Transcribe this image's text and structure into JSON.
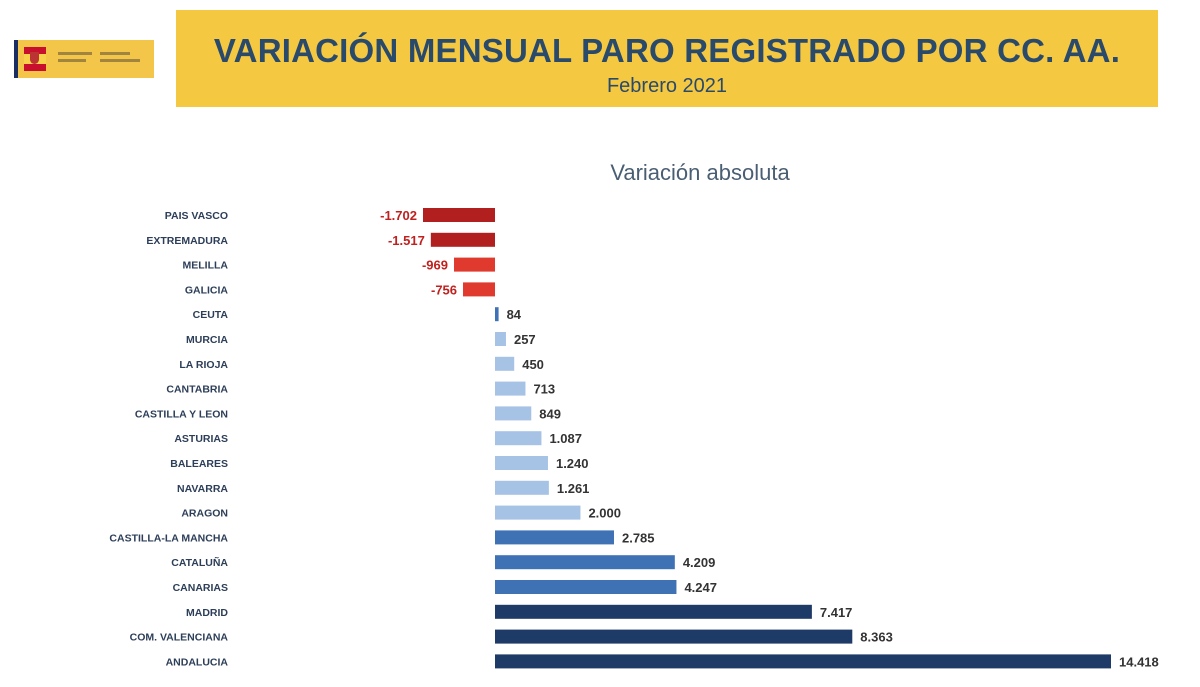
{
  "header": {
    "title": "VARIACIÓN MENSUAL PARO REGISTRADO POR CC. AA.",
    "subtitle": "Febrero 2021"
  },
  "colors": {
    "banner": "#f5c842",
    "negative_dark": "#b21f1f",
    "negative_light": "#e03a2f",
    "positive_light": "#a6c3e6",
    "positive_mid": "#3f72b5",
    "positive_dark": "#1e3a66"
  },
  "chart_data": {
    "type": "bar",
    "orientation": "horizontal",
    "title": "Variación absoluta",
    "categories": [
      "PAIS VASCO",
      "EXTREMADURA",
      "MELILLA",
      "GALICIA",
      "CEUTA",
      "MURCIA",
      "LA RIOJA",
      "CANTABRIA",
      "CASTILLA Y LEON",
      "ASTURIAS",
      "BALEARES",
      "NAVARRA",
      "ARAGON",
      "CASTILLA-LA MANCHA",
      "CATALUÑA",
      "CANARIAS",
      "MADRID",
      "COM. VALENCIANA",
      "ANDALUCIA"
    ],
    "values": [
      -1702,
      -1517,
      -969,
      -756,
      84,
      257,
      450,
      713,
      849,
      1087,
      1240,
      1261,
      2000,
      2785,
      4209,
      4247,
      7417,
      8363,
      14418
    ],
    "value_labels": [
      "-1.702",
      "-1.517",
      "-969",
      "-756",
      "84",
      "257",
      "450",
      "713",
      "849",
      "1.087",
      "1.240",
      "1.261",
      "2.000",
      "2.785",
      "4.209",
      "4.247",
      "7.417",
      "8.363",
      "14.418"
    ],
    "bar_colors": [
      "#b21f1f",
      "#b21f1f",
      "#e03a2f",
      "#e03a2f",
      "#3f72b5",
      "#a6c3e6",
      "#a6c3e6",
      "#a6c3e6",
      "#a6c3e6",
      "#a6c3e6",
      "#a6c3e6",
      "#a6c3e6",
      "#a6c3e6",
      "#3f72b5",
      "#3f72b5",
      "#3f72b5",
      "#1e3a66",
      "#1e3a66",
      "#1e3a66"
    ],
    "label_colors": [
      "#c0201e",
      "#c0201e",
      "#c0201e",
      "#c0201e",
      "#333333",
      "#333333",
      "#333333",
      "#333333",
      "#333333",
      "#333333",
      "#333333",
      "#333333",
      "#333333",
      "#333333",
      "#333333",
      "#333333",
      "#333333",
      "#333333",
      "#333333"
    ],
    "xlim": [
      -1702,
      14418
    ],
    "grid": false,
    "legend": "none"
  }
}
